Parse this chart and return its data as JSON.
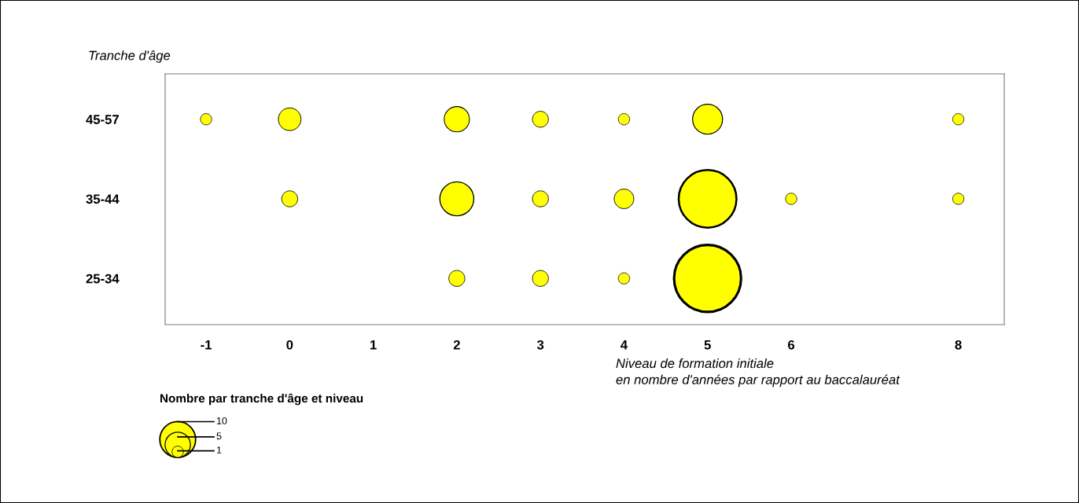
{
  "chart_data": {
    "type": "bubble",
    "orientation": "horizontal",
    "xlabel": "Niveau de formation initiale\nen nombre d'années par rapport au baccalauréat",
    "ylabel": "Tranche d'âge",
    "legend_title": "Nombre par tranche d'âge et niveau",
    "categories": [
      "45-57",
      "35-44",
      "25-34"
    ],
    "xlim": [
      -1.49,
      8.55
    ],
    "xticks": [
      -1,
      0,
      1,
      2,
      3,
      4,
      5,
      6,
      8
    ],
    "grid": false,
    "size_legend": [
      10,
      5,
      1
    ],
    "series": [
      {
        "color": "#ffff00",
        "values": [
          -1,
          null,
          null
        ],
        "sizes": [
          1,
          null,
          null
        ]
      },
      {
        "color": "#ffff00",
        "values": [
          0,
          0,
          null
        ],
        "sizes": [
          4,
          2,
          null
        ]
      },
      {
        "color": "#ffff00",
        "values": [
          2,
          2,
          2
        ],
        "sizes": [
          5,
          9,
          2
        ]
      },
      {
        "color": "#ffff00",
        "values": [
          3,
          3,
          3
        ],
        "sizes": [
          2,
          2,
          2
        ]
      },
      {
        "color": "#ffff00",
        "values": [
          4,
          4,
          4
        ],
        "sizes": [
          1,
          3,
          1
        ]
      },
      {
        "color": "#ffff00",
        "values": [
          5,
          5,
          5
        ],
        "sizes": [
          7,
          26,
          35
        ]
      },
      {
        "color": "#ffff00",
        "values": [
          null,
          6,
          null
        ],
        "sizes": [
          null,
          1,
          null
        ]
      },
      {
        "color": "#ffff00",
        "values": [
          8,
          8,
          null
        ],
        "sizes": [
          1,
          1,
          null
        ]
      }
    ]
  }
}
